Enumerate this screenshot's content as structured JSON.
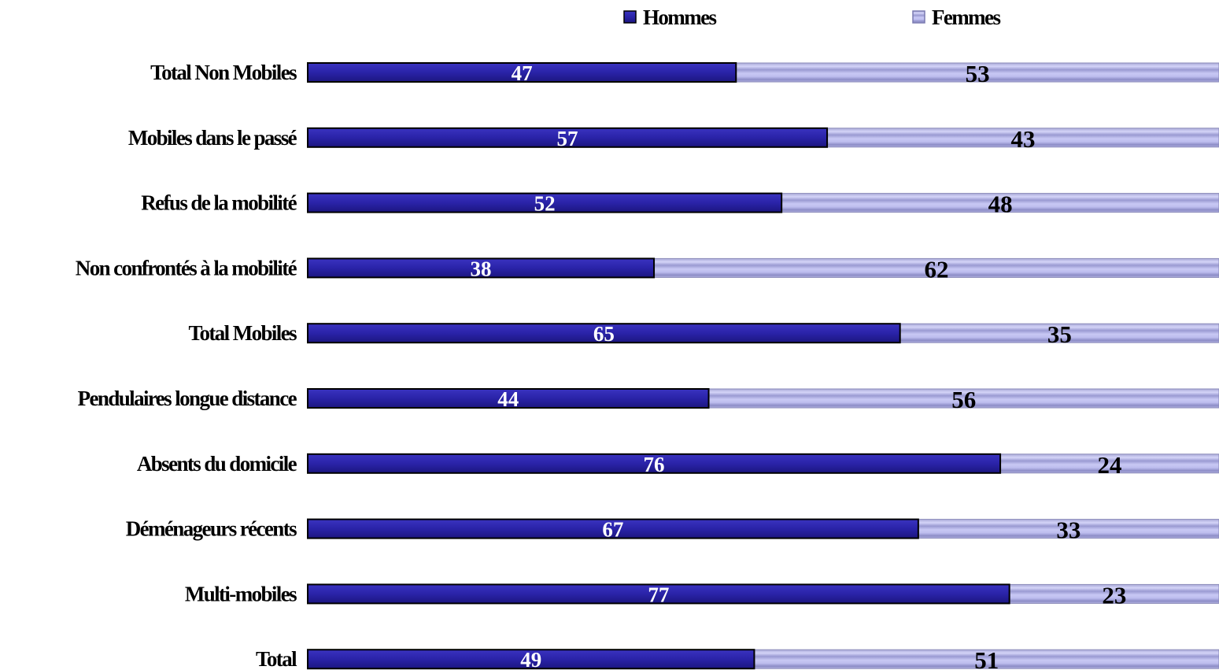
{
  "chart_data": {
    "type": "bar",
    "orientation": "horizontal",
    "stacked": true,
    "categories": [
      "Total Non Mobiles",
      "Mobiles dans le passé",
      "Refus de la mobilité",
      "Non confrontés à la mobilité",
      "Total Mobiles",
      "Pendulaires longue distance",
      "Absents du domicile",
      "Déménageurs récents",
      "Multi-mobiles",
      "Total"
    ],
    "series": [
      {
        "name": "Hommes",
        "color": "#2a23a8",
        "values": [
          47,
          57,
          52,
          38,
          65,
          44,
          76,
          67,
          77,
          49
        ]
      },
      {
        "name": "Femmes",
        "color": "#c3c3f2",
        "values": [
          53,
          43,
          48,
          62,
          35,
          56,
          24,
          33,
          23,
          51
        ]
      }
    ],
    "xlim": [
      0,
      100
    ],
    "grid": false,
    "legend_position": "top"
  }
}
